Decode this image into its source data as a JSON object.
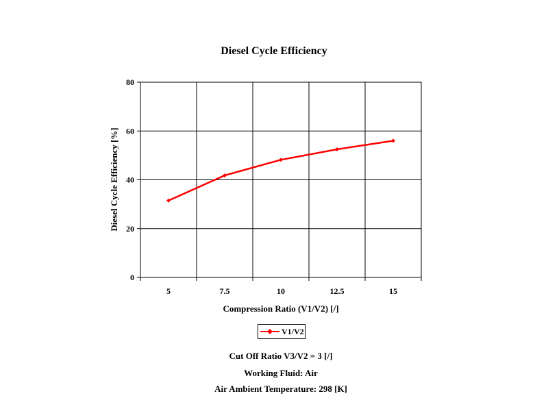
{
  "chart_data": {
    "type": "line",
    "title": "Diesel Cycle Efficiency",
    "xlabel": "Compression Ratio (V1/V2) [/]",
    "ylabel": "Diesel Cycle Efficiency [%]",
    "categories": [
      "5",
      "7.5",
      "10",
      "12.5",
      "15"
    ],
    "x": [
      5,
      7.5,
      10,
      12.5,
      15
    ],
    "ylim": [
      0,
      80
    ],
    "yticks": [
      0,
      20,
      40,
      60,
      80
    ],
    "grid": true,
    "legend_position": "bottom",
    "series": [
      {
        "name": "V1/V2",
        "color": "#ff0000",
        "values": [
          31.5,
          41.8,
          48.2,
          52.5,
          56.0
        ]
      }
    ]
  },
  "notes": [
    "Cut Off Ratio V3/V2 = 3 [/]",
    "Working Fluid:  Air",
    "Air Ambient Temperature:  298 [K]"
  ]
}
